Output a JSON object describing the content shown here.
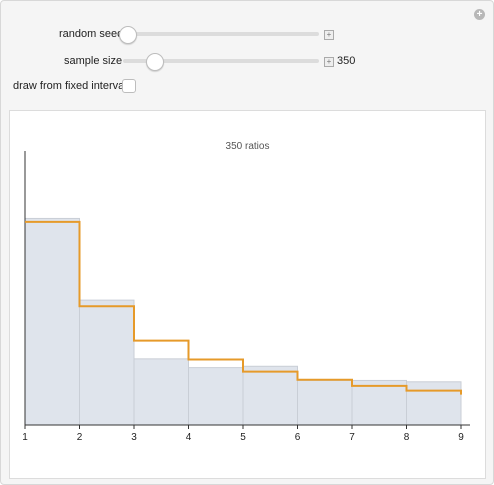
{
  "controls": {
    "random_seed_label": "random seed",
    "sample_size_label": "sample size",
    "sample_size_value": "350",
    "random_seed_fraction": 0.0,
    "sample_size_fraction": 0.1,
    "fixed_interval_label": "draw from fixed interval",
    "fixed_interval_checked": false
  },
  "colors": {
    "bar_fill": "#dfe4ec",
    "bar_stroke": "#c9ced6",
    "line": "#e69a2a",
    "axis": "#333333"
  },
  "chart_data": {
    "type": "bar",
    "title": "350 ratios",
    "categories": [
      "1",
      "2",
      "3",
      "4",
      "5",
      "6",
      "7",
      "8",
      "9"
    ],
    "bins": [
      [
        1,
        2
      ],
      [
        2,
        3
      ],
      [
        3,
        4
      ],
      [
        4,
        5
      ],
      [
        5,
        6
      ],
      [
        6,
        7
      ],
      [
        7,
        8
      ],
      [
        8,
        9
      ]
    ],
    "series": [
      {
        "kind": "histogram",
        "values": [
          0.306,
          0.185,
          0.098,
          0.085,
          0.087,
          0.066,
          0.066,
          0.064
        ]
      },
      {
        "kind": "step-line",
        "values": [
          0.301,
          0.176,
          0.125,
          0.097,
          0.079,
          0.067,
          0.058,
          0.051
        ]
      }
    ],
    "xlim": [
      1,
      9
    ],
    "ylim": [
      0,
      0.4
    ],
    "xticks": [
      "1",
      "2",
      "3",
      "4",
      "5",
      "6",
      "7",
      "8",
      "9"
    ]
  }
}
